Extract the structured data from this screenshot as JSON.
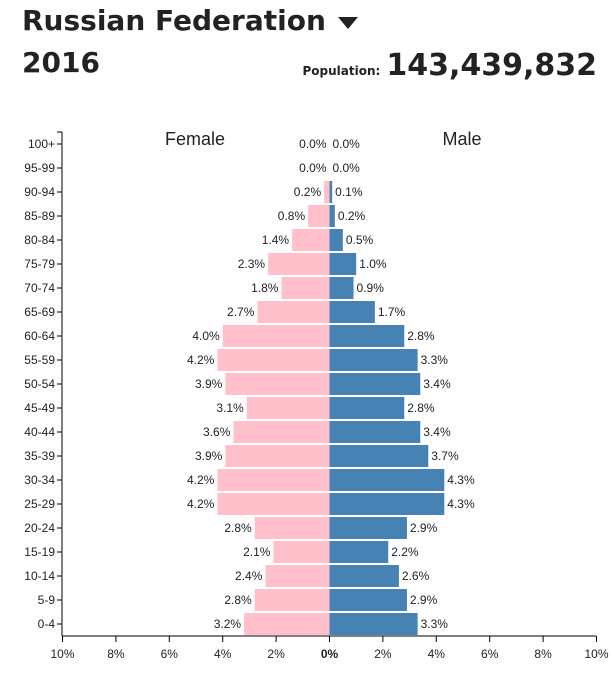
{
  "header": {
    "country": "Russian Federation",
    "year": "2016",
    "population_label": "Population:",
    "population_value": "143,439,832"
  },
  "colors": {
    "female": "#ffc0cb",
    "male": "#4682b4"
  },
  "icons": {
    "dropdown": "caret-down-icon"
  },
  "chart_data": {
    "type": "bar",
    "orientation": "horizontal-pyramid",
    "categories": [
      "100+",
      "95-99",
      "90-94",
      "85-89",
      "80-84",
      "75-79",
      "70-74",
      "65-69",
      "60-64",
      "55-59",
      "50-54",
      "45-49",
      "40-44",
      "35-39",
      "30-34",
      "25-29",
      "20-24",
      "15-19",
      "10-14",
      "5-9",
      "0-4"
    ],
    "series": [
      {
        "name": "Female",
        "values": [
          0.0,
          0.0,
          0.2,
          0.8,
          1.4,
          2.3,
          1.8,
          2.7,
          4.0,
          4.2,
          3.9,
          3.1,
          3.6,
          3.9,
          4.2,
          4.2,
          2.8,
          2.1,
          2.4,
          2.8,
          3.2
        ]
      },
      {
        "name": "Male",
        "values": [
          0.0,
          0.0,
          0.1,
          0.2,
          0.5,
          1.0,
          0.9,
          1.7,
          2.8,
          3.3,
          3.4,
          2.8,
          3.4,
          3.7,
          4.3,
          4.3,
          2.9,
          2.2,
          2.6,
          2.9,
          3.3
        ]
      }
    ],
    "value_labels": {
      "female": [
        "0.0%",
        "0.0%",
        "0.2%",
        "0.8%",
        "1.4%",
        "2.3%",
        "1.8%",
        "2.7%",
        "4.0%",
        "4.2%",
        "3.9%",
        "3.1%",
        "3.6%",
        "3.9%",
        "4.2%",
        "4.2%",
        "2.8%",
        "2.1%",
        "2.4%",
        "2.8%",
        "3.2%"
      ],
      "male": [
        "0.0%",
        "0.0%",
        "0.1%",
        "0.2%",
        "0.5%",
        "1.0%",
        "0.9%",
        "1.7%",
        "2.8%",
        "3.3%",
        "3.4%",
        "2.8%",
        "3.4%",
        "3.7%",
        "4.3%",
        "4.3%",
        "2.9%",
        "2.2%",
        "2.6%",
        "2.9%",
        "3.3%"
      ]
    },
    "xlim": [
      -10,
      10
    ],
    "x_ticks": [
      -10,
      -8,
      -6,
      -4,
      -2,
      0,
      2,
      4,
      6,
      8,
      10
    ],
    "x_tick_labels": [
      "10%",
      "8%",
      "6%",
      "4%",
      "2%",
      "0%",
      "2%",
      "4%",
      "6%",
      "8%",
      "10%"
    ],
    "grid": false,
    "legend": "top"
  }
}
